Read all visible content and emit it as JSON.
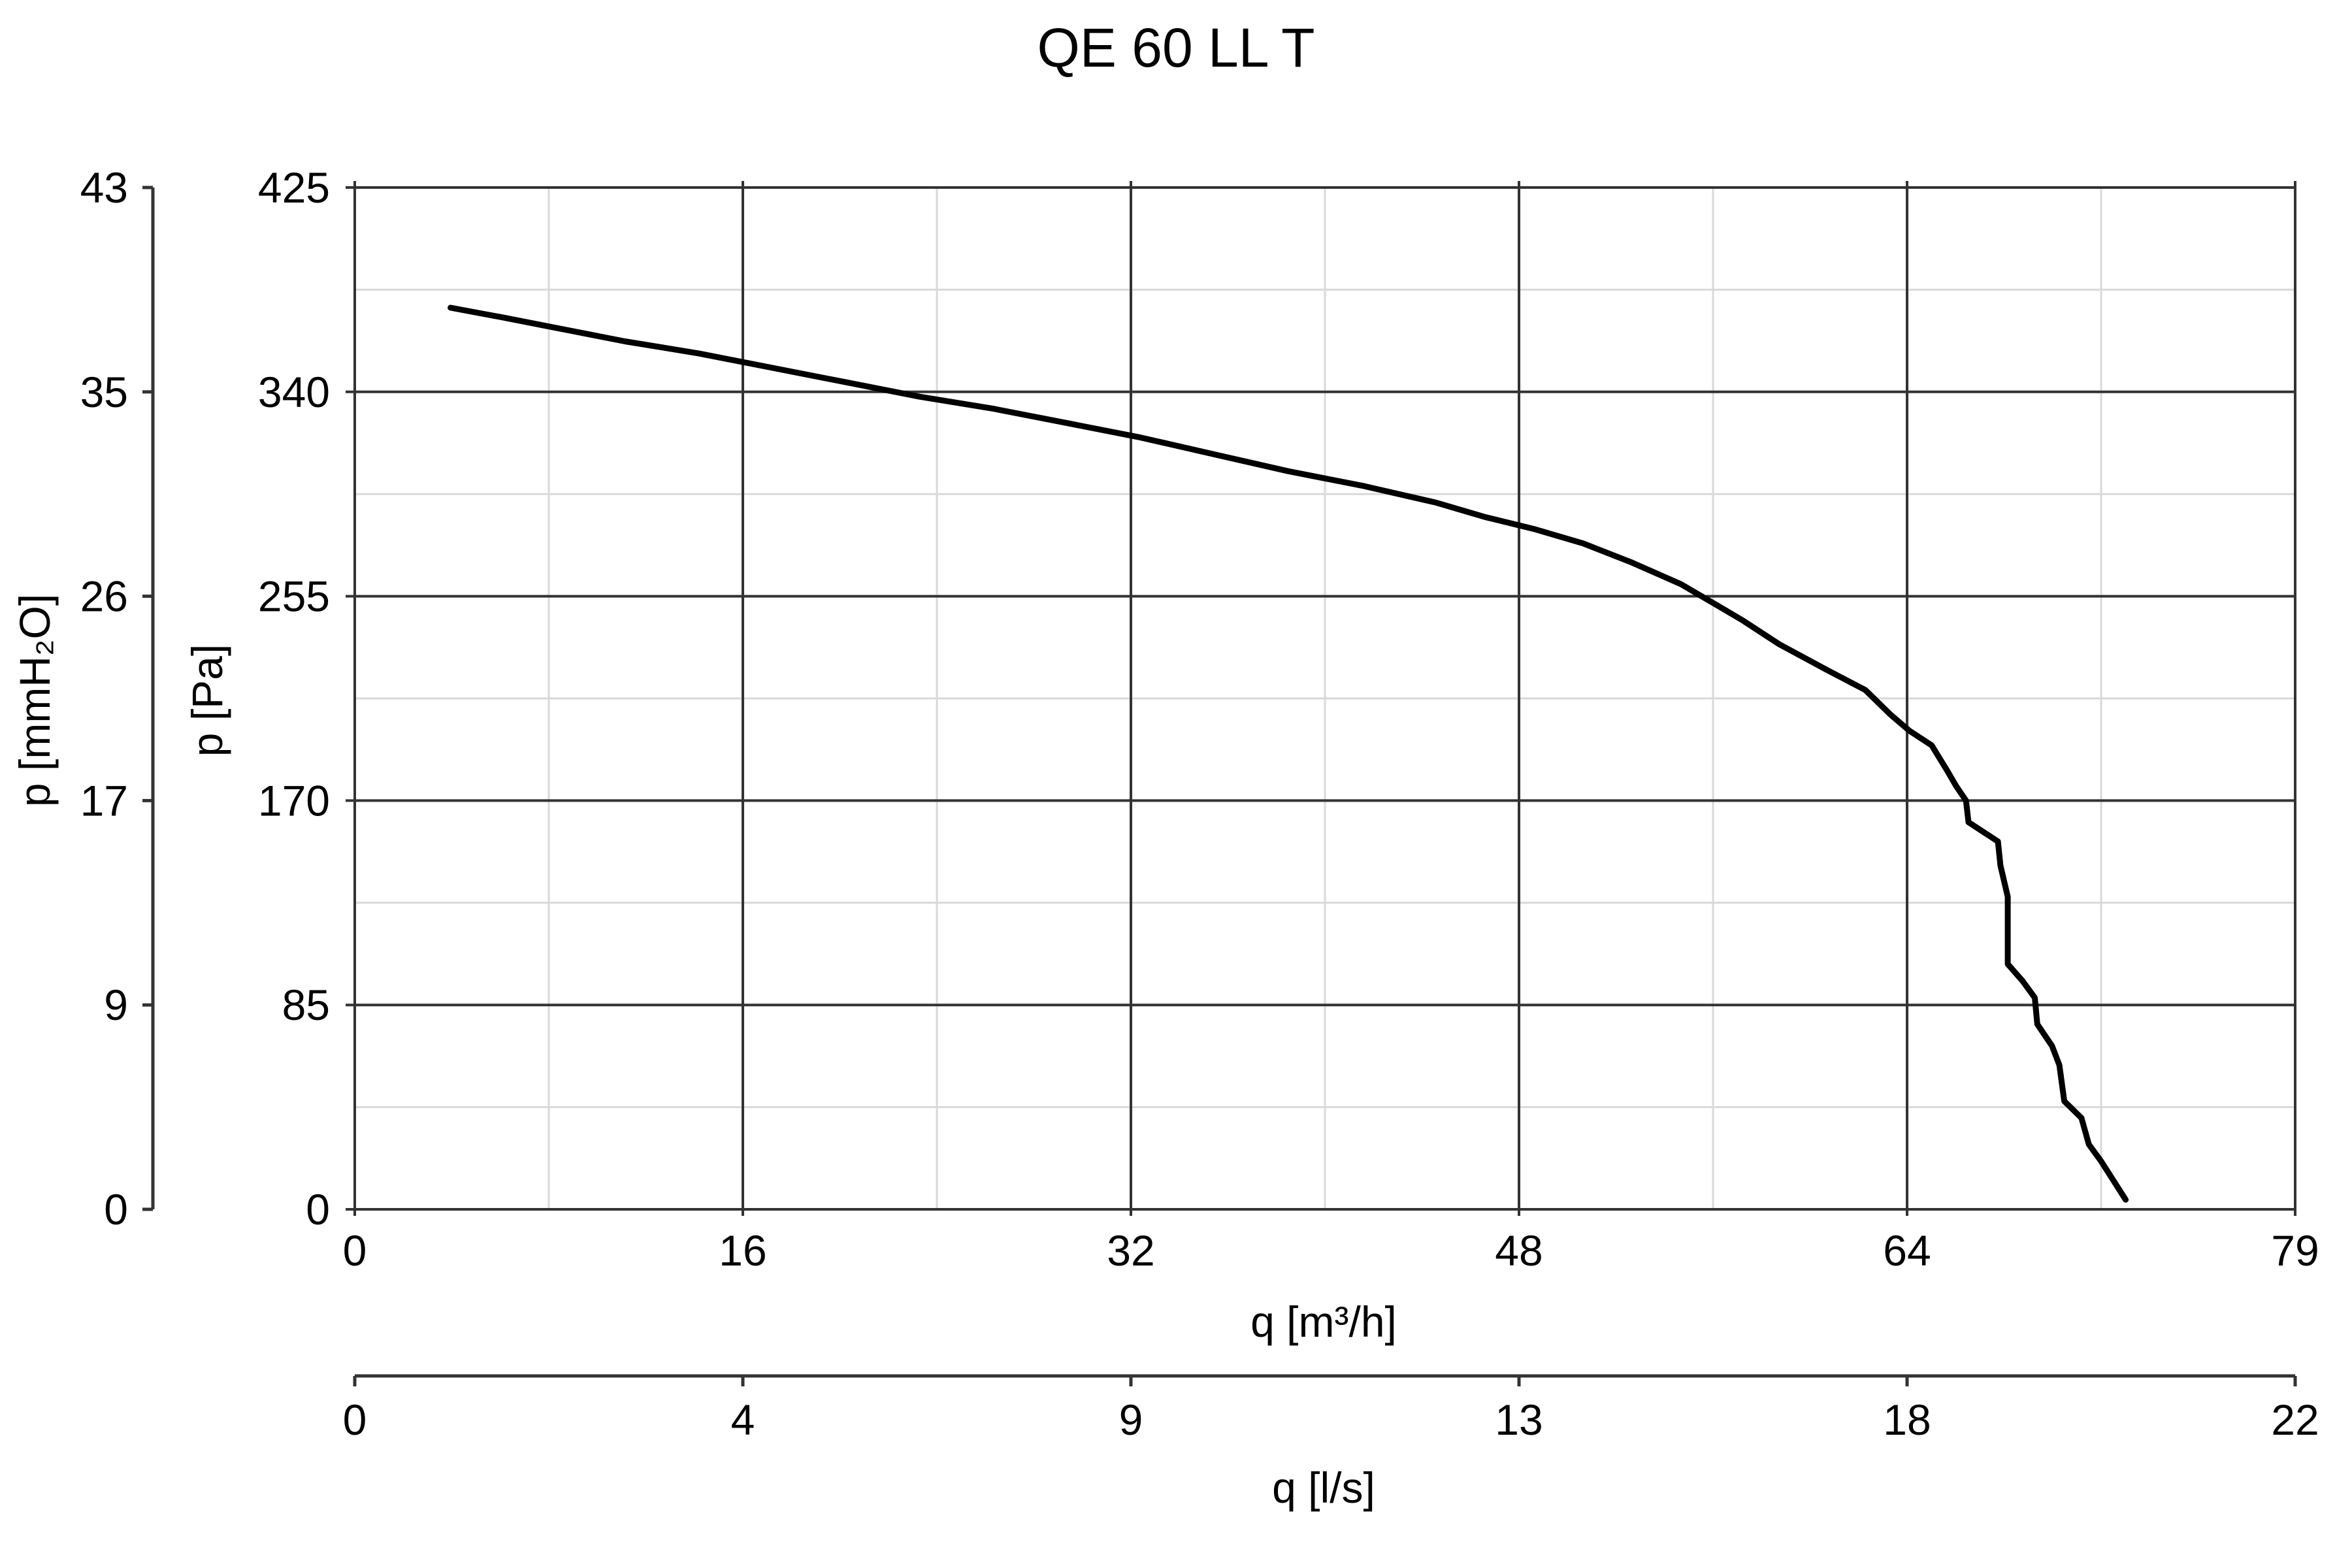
{
  "chart_data": {
    "type": "line",
    "title": "QE 60 LL T",
    "xlabel": "q [m³/h]",
    "ylabel": "p [Pa]",
    "xlim": [
      0,
      79
    ],
    "ylim": [
      0,
      425
    ],
    "x_ticks": [
      "0",
      "16",
      "32",
      "48",
      "64",
      "79"
    ],
    "y_ticks": [
      "0",
      "85",
      "170",
      "255",
      "340",
      "425"
    ],
    "grid": true,
    "secondary_x_axis": {
      "label": "q [l/s]",
      "ticks": [
        "0",
        "4",
        "9",
        "13",
        "18",
        "22"
      ]
    },
    "secondary_y_axis": {
      "label": "p [mmH₂O]",
      "ticks": [
        "0",
        "9",
        "17",
        "26",
        "35",
        "43"
      ]
    },
    "series": [
      {
        "x": [
          3.9,
          6.0,
          8.0,
          11.0,
          14.0,
          17.0,
          20.0,
          23.0,
          26.0,
          29.0,
          32.0,
          35.0,
          38.0,
          41.0,
          44.0,
          46.0,
          48.0,
          50.0,
          52.0,
          54.0,
          55.5,
          56.5,
          58.0,
          60.0,
          61.5,
          62.5,
          63.3,
          64.2,
          64.8,
          65.2,
          65.6,
          65.7,
          66.3,
          66.9,
          67.0,
          67.3,
          67.3,
          67.9,
          68.4,
          68.5,
          69.1,
          69.4,
          69.6,
          70.3,
          70.6,
          71.1,
          72.1
        ],
        "y": [
          375,
          371,
          367,
          361,
          356,
          350,
          344,
          338,
          333,
          327,
          321,
          314,
          307,
          301,
          294,
          288,
          283,
          277,
          269,
          260,
          251,
          245,
          235,
          224,
          216,
          206,
          199,
          193,
          183,
          176,
          170,
          161,
          157,
          153,
          143,
          130,
          102,
          95,
          88,
          77,
          68,
          60,
          45,
          38,
          27,
          20,
          4
        ]
      }
    ]
  }
}
